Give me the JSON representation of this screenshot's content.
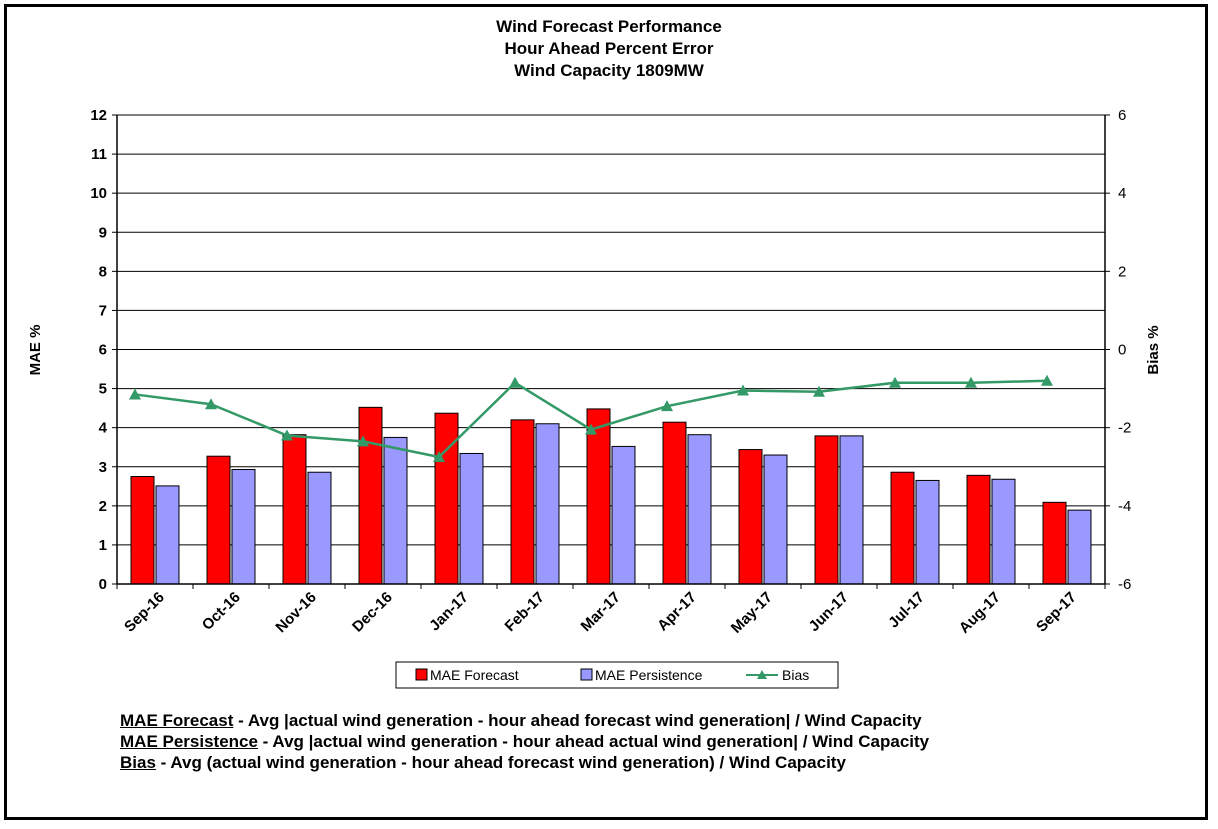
{
  "chart_data": {
    "type": "bar",
    "title_lines": [
      "Wind Forecast Performance",
      "Hour Ahead Percent Error",
      "Wind Capacity 1809MW"
    ],
    "categories": [
      "Sep-16",
      "Oct-16",
      "Nov-16",
      "Dec-16",
      "Jan-17",
      "Feb-17",
      "Mar-17",
      "Apr-17",
      "May-17",
      "Jun-17",
      "Jul-17",
      "Aug-17",
      "Sep-17"
    ],
    "series": [
      {
        "name": "MAE Forecast",
        "axis": "left",
        "kind": "bar",
        "color": "#ff0000",
        "values": [
          2.75,
          3.27,
          3.82,
          4.52,
          4.37,
          4.2,
          4.48,
          4.14,
          3.44,
          3.79,
          2.86,
          2.78,
          2.09
        ]
      },
      {
        "name": "MAE Persistence",
        "axis": "left",
        "kind": "bar",
        "color": "#9999ff",
        "values": [
          2.51,
          2.93,
          2.86,
          3.75,
          3.34,
          4.1,
          3.52,
          3.82,
          3.3,
          3.79,
          2.65,
          2.68,
          1.89
        ]
      },
      {
        "name": "Bias",
        "axis": "right",
        "kind": "line",
        "color": "#339966",
        "values": [
          -1.15,
          -1.4,
          -2.2,
          -2.35,
          -2.75,
          -0.85,
          -2.05,
          -1.45,
          -1.05,
          -1.08,
          -0.85,
          -0.85,
          -0.8
        ]
      }
    ],
    "ylabel": "MAE %",
    "y2label": "Bias %",
    "ylim": [
      0,
      12
    ],
    "yticks": [
      "0",
      "1",
      "2",
      "3",
      "4",
      "5",
      "6",
      "7",
      "8",
      "9",
      "10",
      "11",
      "12"
    ],
    "y2lim": [
      -6,
      6
    ],
    "y2ticks": [
      "-6",
      "-4",
      "-2",
      "0",
      "2",
      "4",
      "6"
    ],
    "grid": true,
    "legend_position": "bottom"
  },
  "notes": [
    {
      "term": "MAE Forecast",
      "text": " - Avg |actual wind generation - hour ahead forecast wind generation| / Wind Capacity"
    },
    {
      "term": "MAE Persistence",
      "text": " - Avg |actual wind generation - hour ahead actual wind generation| / Wind Capacity"
    },
    {
      "term": "Bias",
      "text": " - Avg (actual wind generation - hour ahead forecast wind generation) / Wind Capacity"
    }
  ]
}
